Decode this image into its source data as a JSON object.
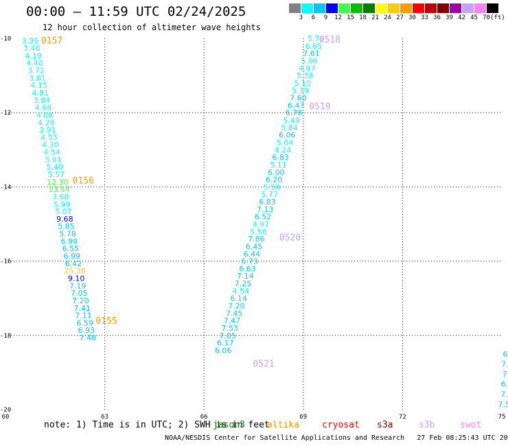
{
  "title": "00:00 — 11:59 UTC 02/24/2025",
  "subtitle": "12 hour collection of altimeter wave heights",
  "legend": {
    "swatches": [
      {
        "label": "3",
        "color": "#808080"
      },
      {
        "label": "6",
        "color": "#00ffff"
      },
      {
        "label": "9",
        "color": "#00c8ff"
      },
      {
        "label": "12",
        "color": "#0000ff"
      },
      {
        "label": "15",
        "color": "#40ff40"
      },
      {
        "label": "18",
        "color": "#00c000"
      },
      {
        "label": "21",
        "color": "#008000"
      },
      {
        "label": "24",
        "color": "#ffff00"
      },
      {
        "label": "27",
        "color": "#ffcc00"
      },
      {
        "label": "30",
        "color": "#ff9900"
      },
      {
        "label": "33",
        "color": "#ff0000"
      },
      {
        "label": "36",
        "color": "#c00000"
      },
      {
        "label": "39",
        "color": "#800000"
      },
      {
        "label": "42",
        "color": "#a000a0"
      },
      {
        "label": "45",
        "color": "#c8a0ff"
      },
      {
        "label": "70",
        "color": "#ff80ff"
      },
      {
        "label": "",
        "color": "#000000"
      }
    ],
    "unit": "(ft)"
  },
  "note": "note: 1) Time is in UTC; 2) SWH is in feet",
  "satellites": [
    {
      "name": "jason3",
      "color": "#008000"
    },
    {
      "name": "altika",
      "color": "#ff9900"
    },
    {
      "name": "cryosat",
      "color": "#ff0000"
    },
    {
      "name": "s3a",
      "color": "#800000"
    },
    {
      "name": "s3b",
      "color": "#c8a0ff"
    },
    {
      "name": "swot",
      "color": "#ff80ff"
    }
  ],
  "credit": "NOAA/NESDIS Center for Satellite Applications and Research   27 Feb 08:25:43 UTC 2025",
  "chart_data": {
    "type": "scatter",
    "title": "00:00 — 11:59 UTC 02/24/2025",
    "subtitle": "12 hour collection of altimeter wave heights",
    "xlim": [
      60,
      75
    ],
    "ylim": [
      -20,
      -10
    ],
    "x_ticks": [
      "60",
      "63",
      "66",
      "69",
      "72",
      "75"
    ],
    "y_ticks": [
      "-10",
      "-12",
      "-14",
      "-16",
      "-18",
      "-20"
    ],
    "grid": true,
    "pass_labels": [
      {
        "text": "0157",
        "x": 61.4,
        "y": -10.05,
        "color": "#ff9900"
      },
      {
        "text": "0156",
        "x": 62.35,
        "y": -13.82,
        "color": "#ff9900"
      },
      {
        "text": "0155",
        "x": 63.05,
        "y": -17.6,
        "color": "#ff9900"
      },
      {
        "text": "0518",
        "x": 69.8,
        "y": -10.02,
        "color": "#c8a0ff"
      },
      {
        "text": "0519",
        "x": 69.5,
        "y": -11.82,
        "color": "#c8a0ff"
      },
      {
        "text": "0520",
        "x": 68.6,
        "y": -15.35,
        "color": "#c8a0ff"
      },
      {
        "text": "0521",
        "x": 67.8,
        "y": -18.75,
        "color": "#c8a0ff"
      }
    ],
    "series": [
      {
        "x0": 60.75,
        "y0": -10.06,
        "dx": 0.0434,
        "dy": 0.2,
        "values": [
          "3.95",
          "3.46",
          "4.19",
          "4.40",
          "3.72",
          "3.81",
          "4.15",
          "4.81",
          "3.84",
          "4.08",
          "4.06",
          "4.28",
          "3.91",
          "4.53",
          "4.30",
          "4.54",
          "5.81",
          "5.40",
          "5.57",
          "12.30",
          "13.54",
          "3.68",
          "5.99",
          "5.07",
          "9.68",
          "5.85",
          "5.78",
          "6.99",
          "6.55",
          "6.99",
          "6.42",
          "25.38",
          "9.10",
          "7.19",
          "7.05",
          "7.20",
          "7.41",
          "7.11",
          "6.59",
          "6.93",
          "7.48"
        ],
        "colors": [
          "#00ffff",
          "#00ffff",
          "#00ffff",
          "#00ffff",
          "#00ffff",
          "#00ffff",
          "#00ffff",
          "#00ffff",
          "#00ffff",
          "#00ffff",
          "#00ffff",
          "#00ffff",
          "#00ffff",
          "#00ffff",
          "#00ffff",
          "#00ffff",
          "#00ffff",
          "#00ffff",
          "#00ffff",
          "#40ff40",
          "#40ff40",
          "#00ffff",
          "#00ffff",
          "#00ffff",
          "#0000ff",
          "#00c8ff",
          "#00c8ff",
          "#00c8ff",
          "#00c8ff",
          "#00c8ff",
          "#00c8ff",
          "#ffcc00",
          "#0000ff",
          "#00c8ff",
          "#00c8ff",
          "#00c8ff",
          "#00c8ff",
          "#00c8ff",
          "#00c8ff",
          "#00c8ff",
          "#00c8ff"
        ]
      },
      {
        "x0": 69.38,
        "y0": -10.0,
        "dx": -0.0667,
        "dy": 0.2,
        "values": [
          "5.79",
          "6.05",
          "7.61",
          "5.06",
          "4.97",
          "5.38",
          "5.10",
          "5.19",
          "7.60",
          "6.47",
          "6.78",
          "5.49",
          "5.84",
          "6.06",
          "5.04",
          "4.24",
          "6.83",
          "5.11",
          "6.00",
          "6.20",
          "5.50",
          "5.77",
          "6.83",
          "7.13",
          "6.52",
          "4.97",
          "5.56",
          "7.86",
          "6.45",
          "6.44",
          "6.73",
          "6.63",
          "7.14",
          "7.25",
          "4.54",
          "6.14",
          "7.20",
          "7.45",
          "7.47",
          "7.53",
          "7.05",
          "6.17",
          "6.06"
        ],
        "colors": [
          "#00ffff",
          "#00ffff",
          "#00c8ff",
          "#00ffff",
          "#00ffff",
          "#00ffff",
          "#00ffff",
          "#00ffff",
          "#00c8ff",
          "#00c8ff",
          "#00c8ff",
          "#00ffff",
          "#00ffff",
          "#00c8ff",
          "#00ffff",
          "#00ffff",
          "#00c8ff",
          "#00ffff",
          "#00c8ff",
          "#00c8ff",
          "#00ffff",
          "#00ffff",
          "#00c8ff",
          "#00c8ff",
          "#00c8ff",
          "#00ffff",
          "#00ffff",
          "#00c8ff",
          "#00c8ff",
          "#00c8ff",
          "#00c8ff",
          "#00c8ff",
          "#00c8ff",
          "#00c8ff",
          "#00ffff",
          "#00c8ff",
          "#00c8ff",
          "#00c8ff",
          "#00c8ff",
          "#00c8ff",
          "#00c8ff",
          "#00c8ff",
          "#00c8ff"
        ]
      },
      {
        "x0": 75.1,
        "y0": -18.5,
        "dx": -0.0067,
        "dy": 0.27,
        "values": [
          "6",
          "7.",
          "7",
          "6.",
          "7.",
          "7.5"
        ],
        "colors": [
          "#00c8ff",
          "#00c8ff",
          "#00c8ff",
          "#00c8ff",
          "#00c8ff",
          "#00c8ff"
        ]
      }
    ]
  }
}
